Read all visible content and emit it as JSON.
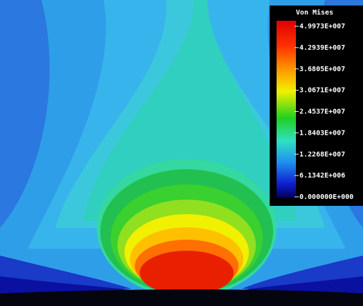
{
  "legend": {
    "title": "Von Mises",
    "labels": [
      "4.9973E+007",
      "4.2939E+007",
      "3.6805E+007",
      "3.0671E+007",
      "2.4537E+007",
      "1.8403E+007",
      "1.2268E+007",
      "6.1342E+006",
      "0.000000E+000"
    ]
  }
}
